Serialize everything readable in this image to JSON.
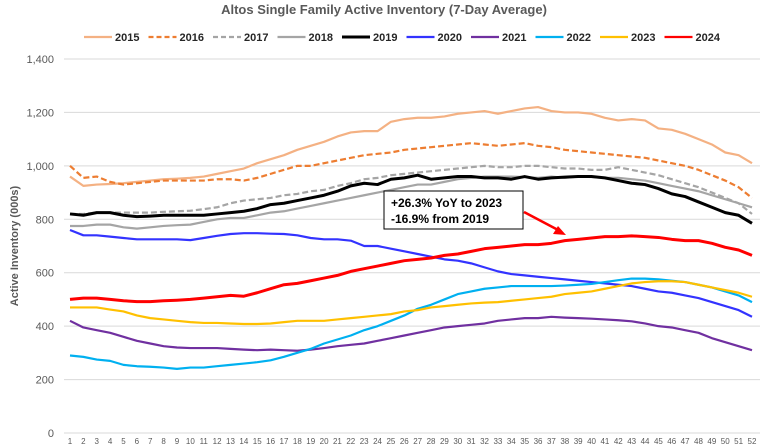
{
  "chart_data": {
    "type": "line",
    "title": "Altos Single Family Active Inventory (7-Day Average)",
    "xlabel": "",
    "ylabel": "Active Inventory (000s)",
    "ylim": [
      0,
      1400
    ],
    "yticks": [
      0,
      200,
      400,
      600,
      800,
      1000,
      1200,
      1400
    ],
    "ytick_labels": [
      "0",
      "200",
      "400",
      "600",
      "800",
      "1,000",
      "1,200",
      "1,400"
    ],
    "x": [
      1,
      2,
      3,
      4,
      5,
      6,
      7,
      8,
      9,
      10,
      11,
      12,
      13,
      14,
      15,
      16,
      17,
      18,
      19,
      20,
      21,
      22,
      23,
      24,
      25,
      26,
      27,
      28,
      29,
      30,
      31,
      32,
      33,
      34,
      35,
      36,
      37,
      38,
      39,
      40,
      41,
      42,
      43,
      44,
      45,
      46,
      47,
      48,
      49,
      50,
      51,
      52
    ],
    "grid": "horizontal",
    "legend_position": "top",
    "annotation": {
      "lines": [
        "+26.3% YoY to 2023",
        "-16.9% from 2019"
      ],
      "arrow_color": "#ff0000"
    },
    "series": [
      {
        "name": "2015",
        "color": "#f4b183",
        "dash": false,
        "values": [
          960,
          925,
          930,
          932,
          935,
          940,
          945,
          950,
          952,
          955,
          960,
          970,
          980,
          990,
          1010,
          1025,
          1040,
          1060,
          1075,
          1090,
          1110,
          1125,
          1130,
          1130,
          1165,
          1175,
          1180,
          1180,
          1185,
          1195,
          1200,
          1205,
          1195,
          1205,
          1215,
          1220,
          1205,
          1200,
          1200,
          1195,
          1180,
          1170,
          1175,
          1170,
          1140,
          1135,
          1120,
          1100,
          1080,
          1050,
          1040,
          1010
        ]
      },
      {
        "name": "2016",
        "color": "#ed7d31",
        "dash": true,
        "values": [
          1000,
          955,
          960,
          940,
          930,
          935,
          940,
          945,
          945,
          945,
          945,
          950,
          950,
          945,
          955,
          970,
          985,
          1000,
          1000,
          1010,
          1020,
          1030,
          1040,
          1045,
          1050,
          1060,
          1065,
          1070,
          1075,
          1080,
          1085,
          1080,
          1075,
          1080,
          1085,
          1075,
          1070,
          1060,
          1055,
          1050,
          1045,
          1040,
          1035,
          1030,
          1020,
          1010,
          1000,
          985,
          965,
          945,
          920,
          880
        ]
      },
      {
        "name": "2017",
        "color": "#a5a5a5",
        "dash": true,
        "values": [
          820,
          820,
          825,
          825,
          825,
          825,
          825,
          828,
          830,
          832,
          838,
          845,
          860,
          870,
          875,
          880,
          890,
          895,
          905,
          910,
          925,
          935,
          950,
          955,
          965,
          970,
          975,
          980,
          985,
          990,
          995,
          1000,
          995,
          995,
          1000,
          1000,
          995,
          990,
          990,
          985,
          985,
          995,
          985,
          975,
          965,
          950,
          935,
          920,
          900,
          880,
          860,
          820
        ]
      },
      {
        "name": "2018",
        "color": "#a5a5a5",
        "dash": false,
        "values": [
          775,
          775,
          780,
          780,
          770,
          765,
          770,
          775,
          778,
          780,
          790,
          800,
          805,
          805,
          815,
          825,
          830,
          840,
          850,
          860,
          870,
          880,
          890,
          900,
          910,
          920,
          930,
          930,
          940,
          950,
          955,
          960,
          960,
          960,
          958,
          955,
          960,
          955,
          960,
          958,
          955,
          955,
          950,
          945,
          935,
          925,
          915,
          905,
          890,
          875,
          860,
          845
        ]
      },
      {
        "name": "2019",
        "color": "#000000",
        "dash": false,
        "values": [
          820,
          815,
          825,
          825,
          815,
          810,
          812,
          815,
          815,
          815,
          815,
          820,
          825,
          830,
          840,
          855,
          860,
          870,
          880,
          890,
          905,
          925,
          935,
          930,
          950,
          955,
          965,
          950,
          955,
          960,
          960,
          955,
          955,
          950,
          960,
          950,
          955,
          958,
          960,
          960,
          955,
          945,
          935,
          930,
          915,
          895,
          885,
          865,
          845,
          825,
          815,
          785
        ]
      },
      {
        "name": "2020",
        "color": "#3333ff",
        "dash": false,
        "values": [
          760,
          740,
          740,
          735,
          730,
          725,
          725,
          725,
          725,
          722,
          730,
          738,
          745,
          748,
          748,
          746,
          745,
          740,
          730,
          725,
          725,
          720,
          700,
          700,
          690,
          680,
          670,
          660,
          650,
          645,
          635,
          620,
          605,
          595,
          590,
          585,
          580,
          575,
          570,
          565,
          560,
          555,
          550,
          540,
          530,
          525,
          515,
          505,
          490,
          475,
          460,
          435
        ]
      },
      {
        "name": "2021",
        "color": "#7030a0",
        "dash": false,
        "values": [
          420,
          395,
          385,
          375,
          360,
          345,
          335,
          325,
          320,
          318,
          318,
          318,
          315,
          312,
          310,
          312,
          310,
          308,
          312,
          318,
          325,
          330,
          335,
          345,
          355,
          365,
          375,
          385,
          395,
          400,
          405,
          410,
          420,
          425,
          430,
          430,
          435,
          432,
          430,
          428,
          425,
          422,
          418,
          410,
          400,
          395,
          385,
          375,
          355,
          340,
          325,
          310
        ]
      },
      {
        "name": "2022",
        "color": "#00b0f0",
        "dash": false,
        "values": [
          290,
          285,
          275,
          270,
          255,
          250,
          248,
          245,
          240,
          245,
          245,
          250,
          255,
          260,
          265,
          272,
          285,
          300,
          315,
          335,
          350,
          365,
          385,
          400,
          420,
          440,
          465,
          480,
          500,
          520,
          530,
          540,
          545,
          550,
          550,
          550,
          550,
          552,
          555,
          558,
          565,
          572,
          578,
          578,
          575,
          570,
          565,
          555,
          545,
          530,
          515,
          490
        ]
      },
      {
        "name": "2023",
        "color": "#ffc000",
        "dash": false,
        "values": [
          470,
          470,
          470,
          462,
          455,
          440,
          430,
          425,
          420,
          415,
          412,
          412,
          410,
          408,
          408,
          410,
          415,
          420,
          420,
          420,
          425,
          430,
          435,
          440,
          445,
          455,
          460,
          470,
          475,
          480,
          485,
          488,
          490,
          495,
          500,
          505,
          510,
          520,
          525,
          530,
          540,
          550,
          560,
          565,
          568,
          568,
          565,
          555,
          545,
          535,
          525,
          510
        ]
      },
      {
        "name": "2024",
        "color": "#ff0000",
        "dash": false,
        "values": [
          500,
          505,
          505,
          500,
          495,
          492,
          492,
          495,
          497,
          500,
          505,
          510,
          515,
          512,
          525,
          540,
          555,
          560,
          570,
          580,
          590,
          605,
          615,
          625,
          635,
          645,
          650,
          655,
          665,
          670,
          680,
          690,
          695,
          700,
          705,
          705,
          710,
          720,
          725,
          730,
          735,
          735,
          738,
          735,
          732,
          725,
          720,
          720,
          710,
          695,
          685,
          665
        ]
      }
    ]
  }
}
